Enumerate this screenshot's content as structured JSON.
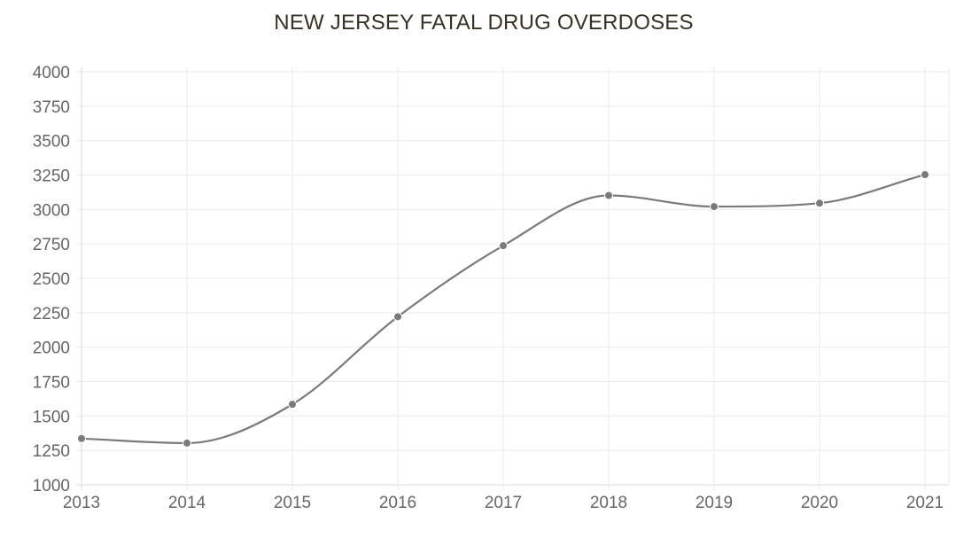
{
  "chart_data": {
    "type": "line",
    "title": "NEW JERSEY FATAL DRUG OVERDOSES",
    "xlabel": "",
    "ylabel": "",
    "x": [
      "2013",
      "2014",
      "2015",
      "2016",
      "2017",
      "2018",
      "2019",
      "2020",
      "2021"
    ],
    "series": [
      {
        "values": [
          1336,
          1303,
          1585,
          2221,
          2737,
          3102,
          3021,
          3046,
          3253
        ]
      }
    ],
    "ylim": [
      1000,
      4000
    ],
    "yticks": [
      "1000",
      "1250",
      "1500",
      "1750",
      "2000",
      "2250",
      "2500",
      "2750",
      "3000",
      "3250",
      "3500",
      "3750",
      "4000"
    ],
    "grid": true,
    "legend": "none",
    "line_color": "#7a7a7a",
    "smooth": true
  }
}
